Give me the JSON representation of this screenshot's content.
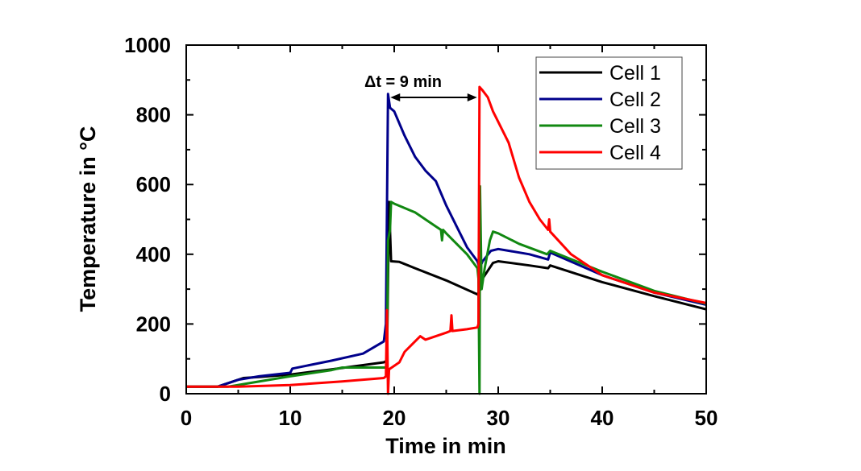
{
  "chart_data": {
    "type": "line",
    "xlabel": "Time in min",
    "ylabel": "Temperature in °C",
    "xlim": [
      0,
      50
    ],
    "ylim": [
      0,
      1000
    ],
    "xticks": [
      0,
      10,
      20,
      30,
      40,
      50
    ],
    "yticks": [
      0,
      200,
      400,
      600,
      800,
      1000
    ],
    "grid": false,
    "legend_position": "top-right",
    "annotation": {
      "text": "Δt = 9 min",
      "from_x": 19.4,
      "to_x": 28.2,
      "y": 855
    },
    "series": [
      {
        "name": "Cell 1",
        "color": "#000000",
        "x": [
          0,
          3,
          4.5,
          5.5,
          7,
          10,
          14,
          19,
          19.3,
          19.5,
          19.7,
          20.5,
          22,
          25,
          28,
          28.3,
          28.5,
          29.5,
          30,
          33,
          34.8,
          35,
          40,
          45,
          50
        ],
        "y": [
          20,
          20,
          35,
          45,
          48,
          55,
          70,
          90,
          95,
          550,
          380,
          378,
          360,
          325,
          285,
          300,
          330,
          375,
          380,
          368,
          360,
          368,
          320,
          280,
          242
        ]
      },
      {
        "name": "Cell 2",
        "color": "#00008b",
        "x": [
          0,
          3,
          5,
          7,
          10,
          10.2,
          14,
          17,
          19,
          19.2,
          19.4,
          19.6,
          20,
          21,
          22,
          23,
          24,
          25,
          26,
          27,
          28,
          28.2,
          28.5,
          29.3,
          30,
          33,
          34.8,
          35,
          40,
          45,
          50
        ],
        "y": [
          20,
          20,
          40,
          50,
          60,
          72,
          95,
          115,
          150,
          200,
          860,
          820,
          810,
          740,
          680,
          640,
          610,
          540,
          480,
          420,
          380,
          360,
          380,
          410,
          415,
          400,
          385,
          405,
          340,
          290,
          255
        ]
      },
      {
        "name": "Cell 3",
        "color": "#118811",
        "x": [
          0,
          4,
          6,
          10,
          14,
          15,
          19,
          19.3,
          19.4,
          19.6,
          19.7,
          20,
          22,
          24,
          24.5,
          24.6,
          24.7,
          25,
          27,
          28,
          28.1,
          28.2,
          28.25,
          28.4,
          28.7,
          29.2,
          29.5,
          30,
          32,
          34.7,
          35,
          40,
          45,
          50
        ],
        "y": [
          20,
          20,
          30,
          50,
          68,
          75,
          75,
          75,
          440,
          470,
          550,
          545,
          520,
          480,
          470,
          440,
          470,
          460,
          400,
          360,
          330,
          0,
          595,
          300,
          360,
          440,
          465,
          460,
          430,
          400,
          410,
          350,
          295,
          258
        ]
      },
      {
        "name": "Cell 4",
        "color": "#ff0000",
        "x": [
          0,
          5,
          10,
          15,
          19,
          19.2,
          19.3,
          19.4,
          19.5,
          20,
          20.5,
          21,
          22,
          22.5,
          23,
          25,
          25.4,
          25.5,
          25.6,
          27,
          28,
          28.1,
          28.2,
          28.5,
          29,
          29.5,
          30,
          31,
          32,
          33,
          34,
          34.8,
          34.9,
          35,
          37,
          40,
          45,
          50
        ],
        "y": [
          20,
          20,
          25,
          35,
          45,
          50,
          240,
          0,
          70,
          80,
          90,
          120,
          150,
          165,
          155,
          175,
          180,
          225,
          180,
          185,
          190,
          200,
          880,
          870,
          850,
          810,
          780,
          720,
          620,
          550,
          500,
          470,
          500,
          465,
          400,
          340,
          290,
          260
        ]
      }
    ]
  }
}
